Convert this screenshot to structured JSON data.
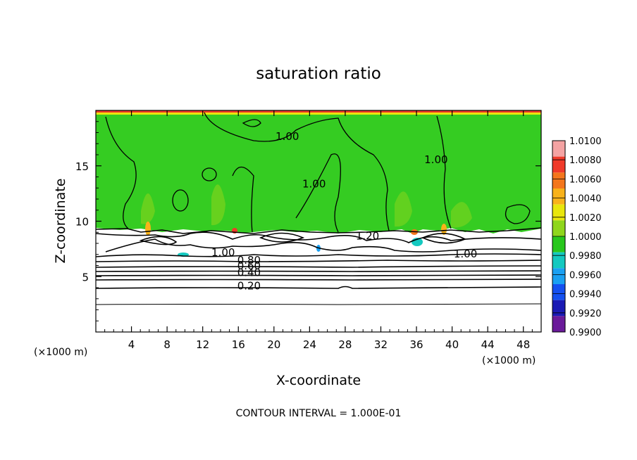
{
  "chart_data": {
    "type": "heatmap",
    "title": "saturation ratio",
    "xlabel": "X-coordinate",
    "ylabel": "Z-coordinate",
    "x_unit_label": "(×1000 m)",
    "x_unit_label_right": "(×1000 m)",
    "xlim": [
      0,
      50
    ],
    "ylim": [
      0,
      20
    ],
    "x_ticks": [
      4,
      8,
      12,
      16,
      20,
      24,
      28,
      32,
      36,
      40,
      44,
      48
    ],
    "y_ticks": [
      5,
      10,
      15
    ],
    "footer": "CONTOUR INTERVAL = 1.000E-01",
    "colorbar": {
      "levels": [
        "1.0100",
        "1.0080",
        "1.0060",
        "1.0040",
        "1.0020",
        "1.0000",
        "0.9980",
        "0.9960",
        "0.9940",
        "0.9920",
        "0.9900"
      ],
      "colors": [
        "#f4a3a3",
        "#f03a2a",
        "#f4761c",
        "#f9b21a",
        "#e9e60c",
        "#8fd61c",
        "#28c71c",
        "#14c9c0",
        "#1aa0f2",
        "#1450f0",
        "#1a1ab4",
        "#6a1a9a"
      ]
    },
    "contour_labels": [
      {
        "text": "1.00",
        "x": 21.5,
        "y": 17.6
      },
      {
        "text": "1.00",
        "x": 24.5,
        "y": 13.3
      },
      {
        "text": "1.00",
        "x": 38.2,
        "y": 15.5
      },
      {
        "text": "1.20",
        "x": 30.5,
        "y": 8.6
      },
      {
        "text": "1.00",
        "x": 14.3,
        "y": 7.1
      },
      {
        "text": "1.00",
        "x": 41.5,
        "y": 7.0
      },
      {
        "text": "0.80",
        "x": 17.2,
        "y": 6.4
      },
      {
        "text": "0.60",
        "x": 17.2,
        "y": 5.9
      },
      {
        "text": "0.40",
        "x": 17.2,
        "y": 5.3
      },
      {
        "text": "0.20",
        "x": 17.2,
        "y": 4.1
      }
    ],
    "regions": [
      {
        "name": "supersaturated-green",
        "z_range": [
          9.2,
          19.6
        ],
        "value": "1.0000-1.0020"
      },
      {
        "name": "cloud-top-boundary",
        "z": 9.3,
        "value": "1.20"
      },
      {
        "name": "subsaturated-layers",
        "z_range": [
          0,
          9.2
        ],
        "contours": [
          0.2,
          0.4,
          0.6,
          0.8,
          1.0
        ]
      }
    ]
  }
}
